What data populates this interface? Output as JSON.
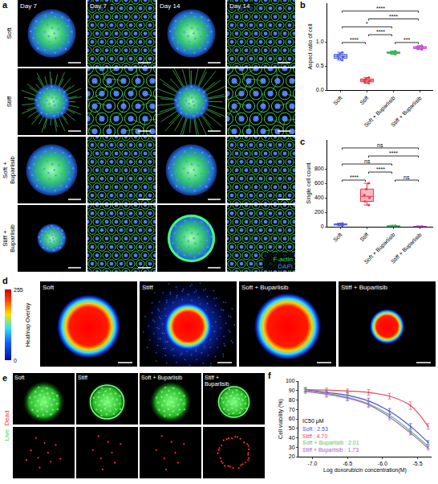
{
  "panels": {
    "a": {
      "letter": "a",
      "columns": [
        "Day 7",
        "Day 7",
        "Day 14",
        "Day 14"
      ],
      "rows": [
        "Soft",
        "Stiff",
        "Soft + Buparlisib",
        "Stiff + Buparlisib"
      ],
      "channels": [
        {
          "name": "F-actin",
          "color": "#3ddc4a"
        },
        {
          "name": "DAPI",
          "color": "#4f7dff"
        }
      ]
    },
    "d": {
      "letter": "d",
      "images": [
        "Soft",
        "Stiff",
        "Soft + Buparlisib",
        "Stiff + Buparlisib"
      ],
      "colorbar": {
        "title": "Heatmap Overlay",
        "range": [
          0,
          255
        ],
        "ticks": [
          0,
          255
        ]
      }
    },
    "e": {
      "letter": "e",
      "images": [
        "Soft",
        "Stiff",
        "Soft + Buparlisib",
        "Stiff + Buparlisib"
      ],
      "channels": [
        {
          "name": "Live",
          "color": "#3ddc4a"
        },
        {
          "name": "Dead",
          "color": "#ff3030"
        }
      ]
    }
  },
  "chart_data": [
    {
      "panel": "b",
      "type": "box",
      "y_label": "Aspect ratio of cell",
      "categories": [
        "Soft",
        "Stiff",
        "Soft + Buparlisib",
        "Stiff + Buparlisib"
      ],
      "values": [
        [
          0.62,
          0.66,
          0.69,
          0.71,
          0.74,
          0.78
        ],
        [
          0.14,
          0.17,
          0.19,
          0.21,
          0.23,
          0.26
        ],
        [
          0.74,
          0.76,
          0.77,
          0.78,
          0.79,
          0.81
        ],
        [
          0.84,
          0.86,
          0.88,
          0.89,
          0.9,
          0.92
        ]
      ],
      "colors": [
        "#4a5fd8",
        "#e8334a",
        "#3fb55a",
        "#c74fd1"
      ],
      "ylim": [
        0,
        1.8
      ],
      "yticks": [
        {
          "value": 0,
          "label": "0.0"
        },
        {
          "value": 0.5,
          "label": "0.5"
        },
        {
          "value": 1,
          "label": "1.0"
        }
      ],
      "grid": false,
      "comparisons": [
        {
          "pair": [
            "Soft",
            "Stiff"
          ],
          "label": "****"
        },
        {
          "pair": [
            "Stiff",
            "Soft + Buparlisib"
          ],
          "label": "****"
        },
        {
          "pair": [
            "Soft + Buparlisib",
            "Stiff + Buparlisib"
          ],
          "label": "***"
        },
        {
          "pair": [
            "Soft",
            "Soft + Buparlisib"
          ],
          "label": "*"
        },
        {
          "pair": [
            "Stiff",
            "Stiff + Buparlisib"
          ],
          "label": "****"
        },
        {
          "pair": [
            "Soft",
            "Stiff + Buparlisib"
          ],
          "label": "****"
        }
      ]
    },
    {
      "panel": "c",
      "type": "box",
      "y_label": "Single cell count",
      "categories": [
        "Soft",
        "Stiff",
        "Soft + Buparlisib",
        "Stiff + Buparlisib"
      ],
      "values": [
        [
          18,
          24,
          30,
          35,
          40,
          48
        ],
        [
          300,
          350,
          400,
          440,
          520,
          600
        ],
        [
          4,
          7,
          9,
          12,
          14,
          17
        ],
        [
          0,
          1,
          2,
          3,
          4,
          6
        ]
      ],
      "colors": [
        "#4a5fd8",
        "#e8334a",
        "#3fb55a",
        "#c74fd1"
      ],
      "ylim": [
        0,
        1200
      ],
      "yticks": [
        0,
        200,
        400,
        600,
        800
      ],
      "grid": false,
      "comparisons": [
        {
          "pair": [
            "Soft",
            "Stiff"
          ],
          "label": "****"
        },
        {
          "pair": [
            "Stiff",
            "Soft + Buparlisib"
          ],
          "label": "****"
        },
        {
          "pair": [
            "Soft + Buparlisib",
            "Stiff + Buparlisib"
          ],
          "label": "ns"
        },
        {
          "pair": [
            "Soft",
            "Soft + Buparlisib"
          ],
          "label": "ns"
        },
        {
          "pair": [
            "Stiff",
            "Stiff + Buparlisib"
          ],
          "label": "****"
        },
        {
          "pair": [
            "Soft",
            "Stiff + Buparlisib"
          ],
          "label": "ns"
        }
      ]
    },
    {
      "panel": "f",
      "type": "line",
      "x_label": "Log doxorubicin concentration(M)",
      "y_label": "Cell viability (%)",
      "legend_title": "IC50 μM",
      "legend": "lower left",
      "x": [
        -7.1,
        -6.8,
        -6.5,
        -6.2,
        -5.9,
        -5.6,
        -5.35
      ],
      "series": [
        {
          "name": "Soft : 2.53",
          "color": "#4a4fd6",
          "values": [
            91,
            88,
            85,
            79,
            68,
            52,
            35
          ],
          "errors": [
            2,
            2,
            3,
            3,
            3,
            3,
            2
          ]
        },
        {
          "name": "Stiff : 4.70",
          "color": "#e84a5f",
          "values": [
            91,
            90.5,
            89.5,
            88,
            84,
            74,
            52
          ],
          "errors": [
            2,
            2,
            2,
            3,
            3,
            4,
            3
          ]
        },
        {
          "name": "Soft + Buparlisib : 2.01",
          "color": "#5cc06f",
          "values": [
            90,
            87,
            83,
            76,
            64,
            47,
            31
          ],
          "errors": [
            2,
            3,
            3,
            3,
            3,
            3,
            2
          ]
        },
        {
          "name": "Stiff + Buparlisib : 1.73",
          "color": "#b05ad8",
          "values": [
            89,
            86,
            82,
            75,
            62,
            45,
            29
          ],
          "errors": [
            2,
            3,
            3,
            3,
            3,
            2,
            2
          ]
        }
      ],
      "xlim": [
        -7.2,
        -5.3
      ],
      "xticks": [
        {
          "value": -7,
          "label": "-7.0"
        },
        {
          "value": -6.5,
          "label": "-6.5"
        },
        {
          "value": -6,
          "label": "-6.0"
        },
        {
          "value": -5.5,
          "label": "-5.5"
        }
      ],
      "ylim": [
        20,
        100
      ],
      "yticks": [
        20,
        30,
        40,
        50,
        60,
        70,
        80,
        90,
        100
      ],
      "grid": false
    }
  ]
}
